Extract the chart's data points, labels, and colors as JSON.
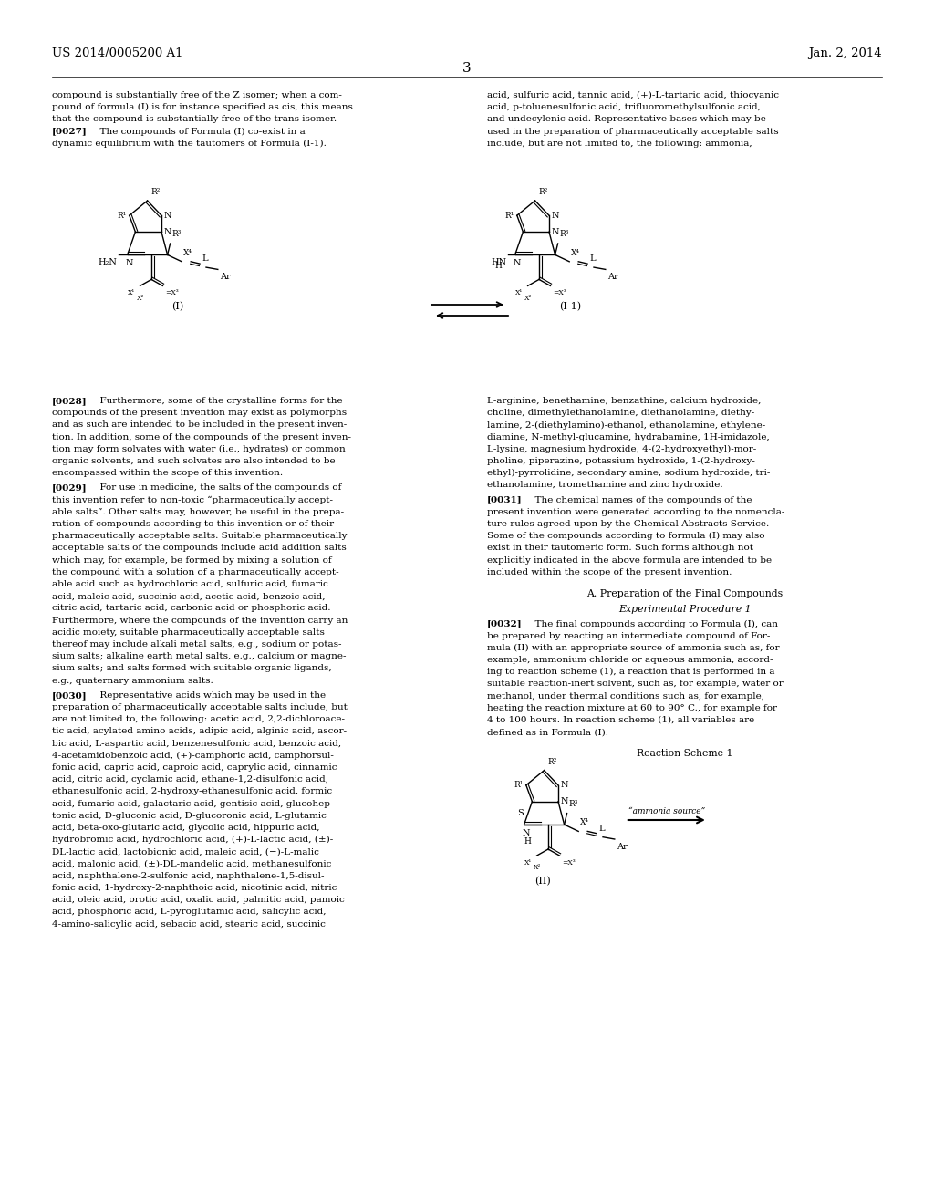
{
  "page_number": "3",
  "patent_number": "US 2014/0005200 A1",
  "patent_date": "Jan. 2, 2014",
  "col1_top_lines": [
    "compound is substantially free of the Z isomer; when a com-",
    "pound of formula (I) is for instance specified as cis, this means",
    "that the compound is substantially free of the trans isomer."
  ],
  "p027_lines": [
    "dynamic equilibrium with the tautomers of Formula (I-1)."
  ],
  "col2_top_lines": [
    "acid, sulfuric acid, tannic acid, (+)-L-tartaric acid, thiocyanic",
    "acid, p-toluenesulfonic acid, trifluoromethylsulfonic acid,",
    "and undecylenic acid. Representative bases which may be",
    "used in the preparation of pharmaceutically acceptable salts",
    "include, but are not limited to, the following: ammonia,"
  ],
  "p028_lines": [
    "compounds of the present invention may exist as polymorphs",
    "and as such are intended to be included in the present inven-",
    "tion. In addition, some of the compounds of the present inven-",
    "tion may form solvates with water (i.e., hydrates) or common",
    "organic solvents, and such solvates are also intended to be",
    "encompassed within the scope of this invention."
  ],
  "p029_lines": [
    "this invention refer to non-toxic “pharmaceutically accept-",
    "able salts”. Other salts may, however, be useful in the prepa-",
    "ration of compounds according to this invention or of their",
    "pharmaceutically acceptable salts. Suitable pharmaceutically",
    "acceptable salts of the compounds include acid addition salts",
    "which may, for example, be formed by mixing a solution of",
    "the compound with a solution of a pharmaceutically accept-",
    "able acid such as hydrochloric acid, sulfuric acid, fumaric",
    "acid, maleic acid, succinic acid, acetic acid, benzoic acid,",
    "citric acid, tartaric acid, carbonic acid or phosphoric acid.",
    "Furthermore, where the compounds of the invention carry an",
    "acidic moiety, suitable pharmaceutically acceptable salts",
    "thereof may include alkali metal salts, e.g., sodium or potas-",
    "sium salts; alkaline earth metal salts, e.g., calcium or magne-",
    "sium salts; and salts formed with suitable organic ligands,",
    "e.g., quaternary ammonium salts."
  ],
  "p030_lines": [
    "preparation of pharmaceutically acceptable salts include, but",
    "are not limited to, the following: acetic acid, 2,2-dichloroace-",
    "tic acid, acylated amino acids, adipic acid, alginic acid, ascor-",
    "bic acid, L-aspartic acid, benzenesulfonic acid, benzoic acid,",
    "4-acetamidobenzoic acid, (+)-camphoric acid, camphorsul-",
    "fonic acid, capric acid, caproic acid, caprylic acid, cinnamic",
    "acid, citric acid, cyclamic acid, ethane-1,2-disulfonic acid,",
    "ethanesulfonic acid, 2-hydroxy-ethanesulfonic acid, formic",
    "acid, fumaric acid, galactaric acid, gentisic acid, glucohep-",
    "tonic acid, D-gluconic acid, D-glucoronic acid, L-glutamic",
    "acid, beta-oxo-glutaric acid, glycolic acid, hippuric acid,",
    "hydrobromic acid, hydrochloric acid, (+)-L-lactic acid, (±)-",
    "DL-lactic acid, lactobionic acid, maleic acid, (−)-L-malic",
    "acid, malonic acid, (±)-DL-mandelic acid, methanesulfonic",
    "acid, naphthalene-2-sulfonic acid, naphthalene-1,5-disul-",
    "fonic acid, 1-hydroxy-2-naphthoic acid, nicotinic acid, nitric",
    "acid, oleic acid, orotic acid, oxalic acid, palmitic acid, pamoic",
    "acid, phosphoric acid, L-pyroglutamic acid, salicylic acid,",
    "4-amino-salicylic acid, sebacic acid, stearic acid, succinic"
  ],
  "col2_p031_lines": [
    "L-arginine, benethamine, benzathine, calcium hydroxide,",
    "choline, dimethylethanolamine, diethanolamine, diethy-",
    "lamine, 2-(diethylamino)-ethanol, ethanolamine, ethylene-",
    "diamine, N-methyl-glucamine, hydrabamine, 1H-imidazole,",
    "L-lysine, magnesium hydroxide, 4-(2-hydroxyethyl)-mor-",
    "pholine, piperazine, potassium hydroxide, 1-(2-hydroxy-",
    "ethyl)-pyrrolidine, secondary amine, sodium hydroxide, tri-",
    "ethanolamine, tromethamine and zinc hydroxide."
  ],
  "p031_lines": [
    "present invention were generated according to the nomencla-",
    "ture rules agreed upon by the Chemical Abstracts Service.",
    "Some of the compounds according to formula (I) may also",
    "exist in their tautomeric form. Such forms although not",
    "explicitly indicated in the above formula are intended to be",
    "included within the scope of the present invention."
  ],
  "p032_lines": [
    "be prepared by reacting an intermediate compound of For-",
    "mula (II) with an appropriate source of ammonia such as, for",
    "example, ammonium chloride or aqueous ammonia, accord-",
    "ing to reaction scheme (1), a reaction that is performed in a",
    "suitable reaction-inert solvent, such as, for example, water or",
    "methanol, under thermal conditions such as, for example,",
    "heating the reaction mixture at 60 to 90° C., for example for",
    "4 to 100 hours. In reaction scheme (1), all variables are",
    "defined as in Formula (I)."
  ]
}
